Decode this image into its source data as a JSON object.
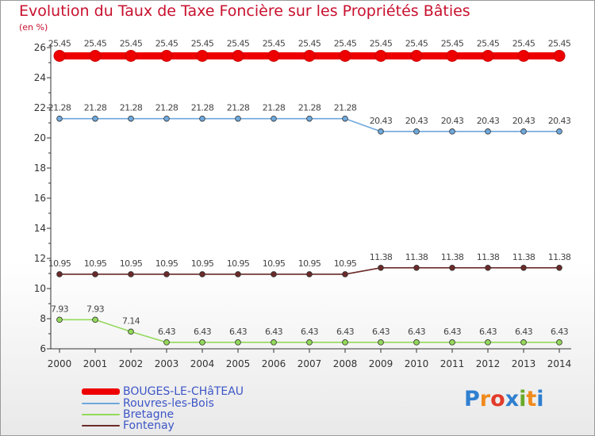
{
  "title": "Evolution du Taux de Taxe Foncière sur les Propriétés Bâties",
  "unit_label": "(en %)",
  "logo": {
    "letters": [
      "P",
      "r",
      "o",
      "x",
      "i",
      "t",
      "i"
    ],
    "colors": [
      "#2f7fd0",
      "#f08a1c",
      "#e23b2a",
      "#2f7fd0",
      "#6aaa2a",
      "#f08a1c",
      "#2f7fd0"
    ]
  },
  "chart_data": {
    "type": "line",
    "title": "Evolution du Taux de Taxe Foncière sur les Propriétés Bâties",
    "ylabel": "(en %)",
    "xlabel": "",
    "ylim": [
      6,
      26
    ],
    "yticks": [
      6,
      8,
      10,
      12,
      14,
      16,
      18,
      20,
      22,
      24,
      26
    ],
    "x": [
      "2000",
      "2001",
      "2002",
      "2003",
      "2004",
      "2005",
      "2006",
      "2007",
      "2008",
      "2009",
      "2010",
      "2011",
      "2012",
      "2013",
      "2014"
    ],
    "grid": false,
    "legend_position": "bottom-left",
    "series": [
      {
        "name": "BOUGES-LE-CHâTEAU",
        "color": "#ee0000",
        "thick": true,
        "values": [
          25.45,
          25.45,
          25.45,
          25.45,
          25.45,
          25.45,
          25.45,
          25.45,
          25.45,
          25.45,
          25.45,
          25.45,
          25.45,
          25.45,
          25.45
        ],
        "labels": [
          "25.45",
          "25.45",
          "25.45",
          "25.45",
          "25.45",
          "25.45",
          "25.45",
          "25.45",
          "25.45",
          "25.45",
          "25.45",
          "25.45",
          "25.45",
          "25.45",
          "25.45"
        ]
      },
      {
        "name": "Rouvres-les-Bois",
        "color": "#6fa8dc",
        "thick": false,
        "values": [
          21.28,
          21.28,
          21.28,
          21.28,
          21.28,
          21.28,
          21.28,
          21.28,
          21.28,
          20.43,
          20.43,
          20.43,
          20.43,
          20.43,
          20.43
        ],
        "labels": [
          "21.28",
          "21.28",
          "21.28",
          "21.28",
          "21.28",
          "21.28",
          "21.28",
          "21.28",
          "21.28",
          "20.43",
          "20.43",
          "20.43",
          "20.43",
          "20.43",
          "20.43"
        ]
      },
      {
        "name": "Bretagne",
        "color": "#93d95a",
        "thick": false,
        "values": [
          7.93,
          7.93,
          7.14,
          6.43,
          6.43,
          6.43,
          6.43,
          6.43,
          6.43,
          6.43,
          6.43,
          6.43,
          6.43,
          6.43,
          6.43
        ],
        "labels": [
          "7.93",
          "7.93",
          "7.14",
          "6.43",
          "6.43",
          "6.43",
          "6.43",
          "6.43",
          "6.43",
          "6.43",
          "6.43",
          "6.43",
          "6.43",
          "6.43",
          "6.43"
        ]
      },
      {
        "name": "Fontenay",
        "color": "#6b2a2a",
        "thick": false,
        "values": [
          10.95,
          10.95,
          10.95,
          10.95,
          10.95,
          10.95,
          10.95,
          10.95,
          10.95,
          11.38,
          11.38,
          11.38,
          11.38,
          11.38,
          11.38
        ],
        "labels": [
          "10.95",
          "10.95",
          "10.95",
          "10.95",
          "10.95",
          "10.95",
          "10.95",
          "10.95",
          "10.95",
          "11.38",
          "11.38",
          "11.38",
          "11.38",
          "11.38",
          "11.38"
        ]
      }
    ]
  }
}
